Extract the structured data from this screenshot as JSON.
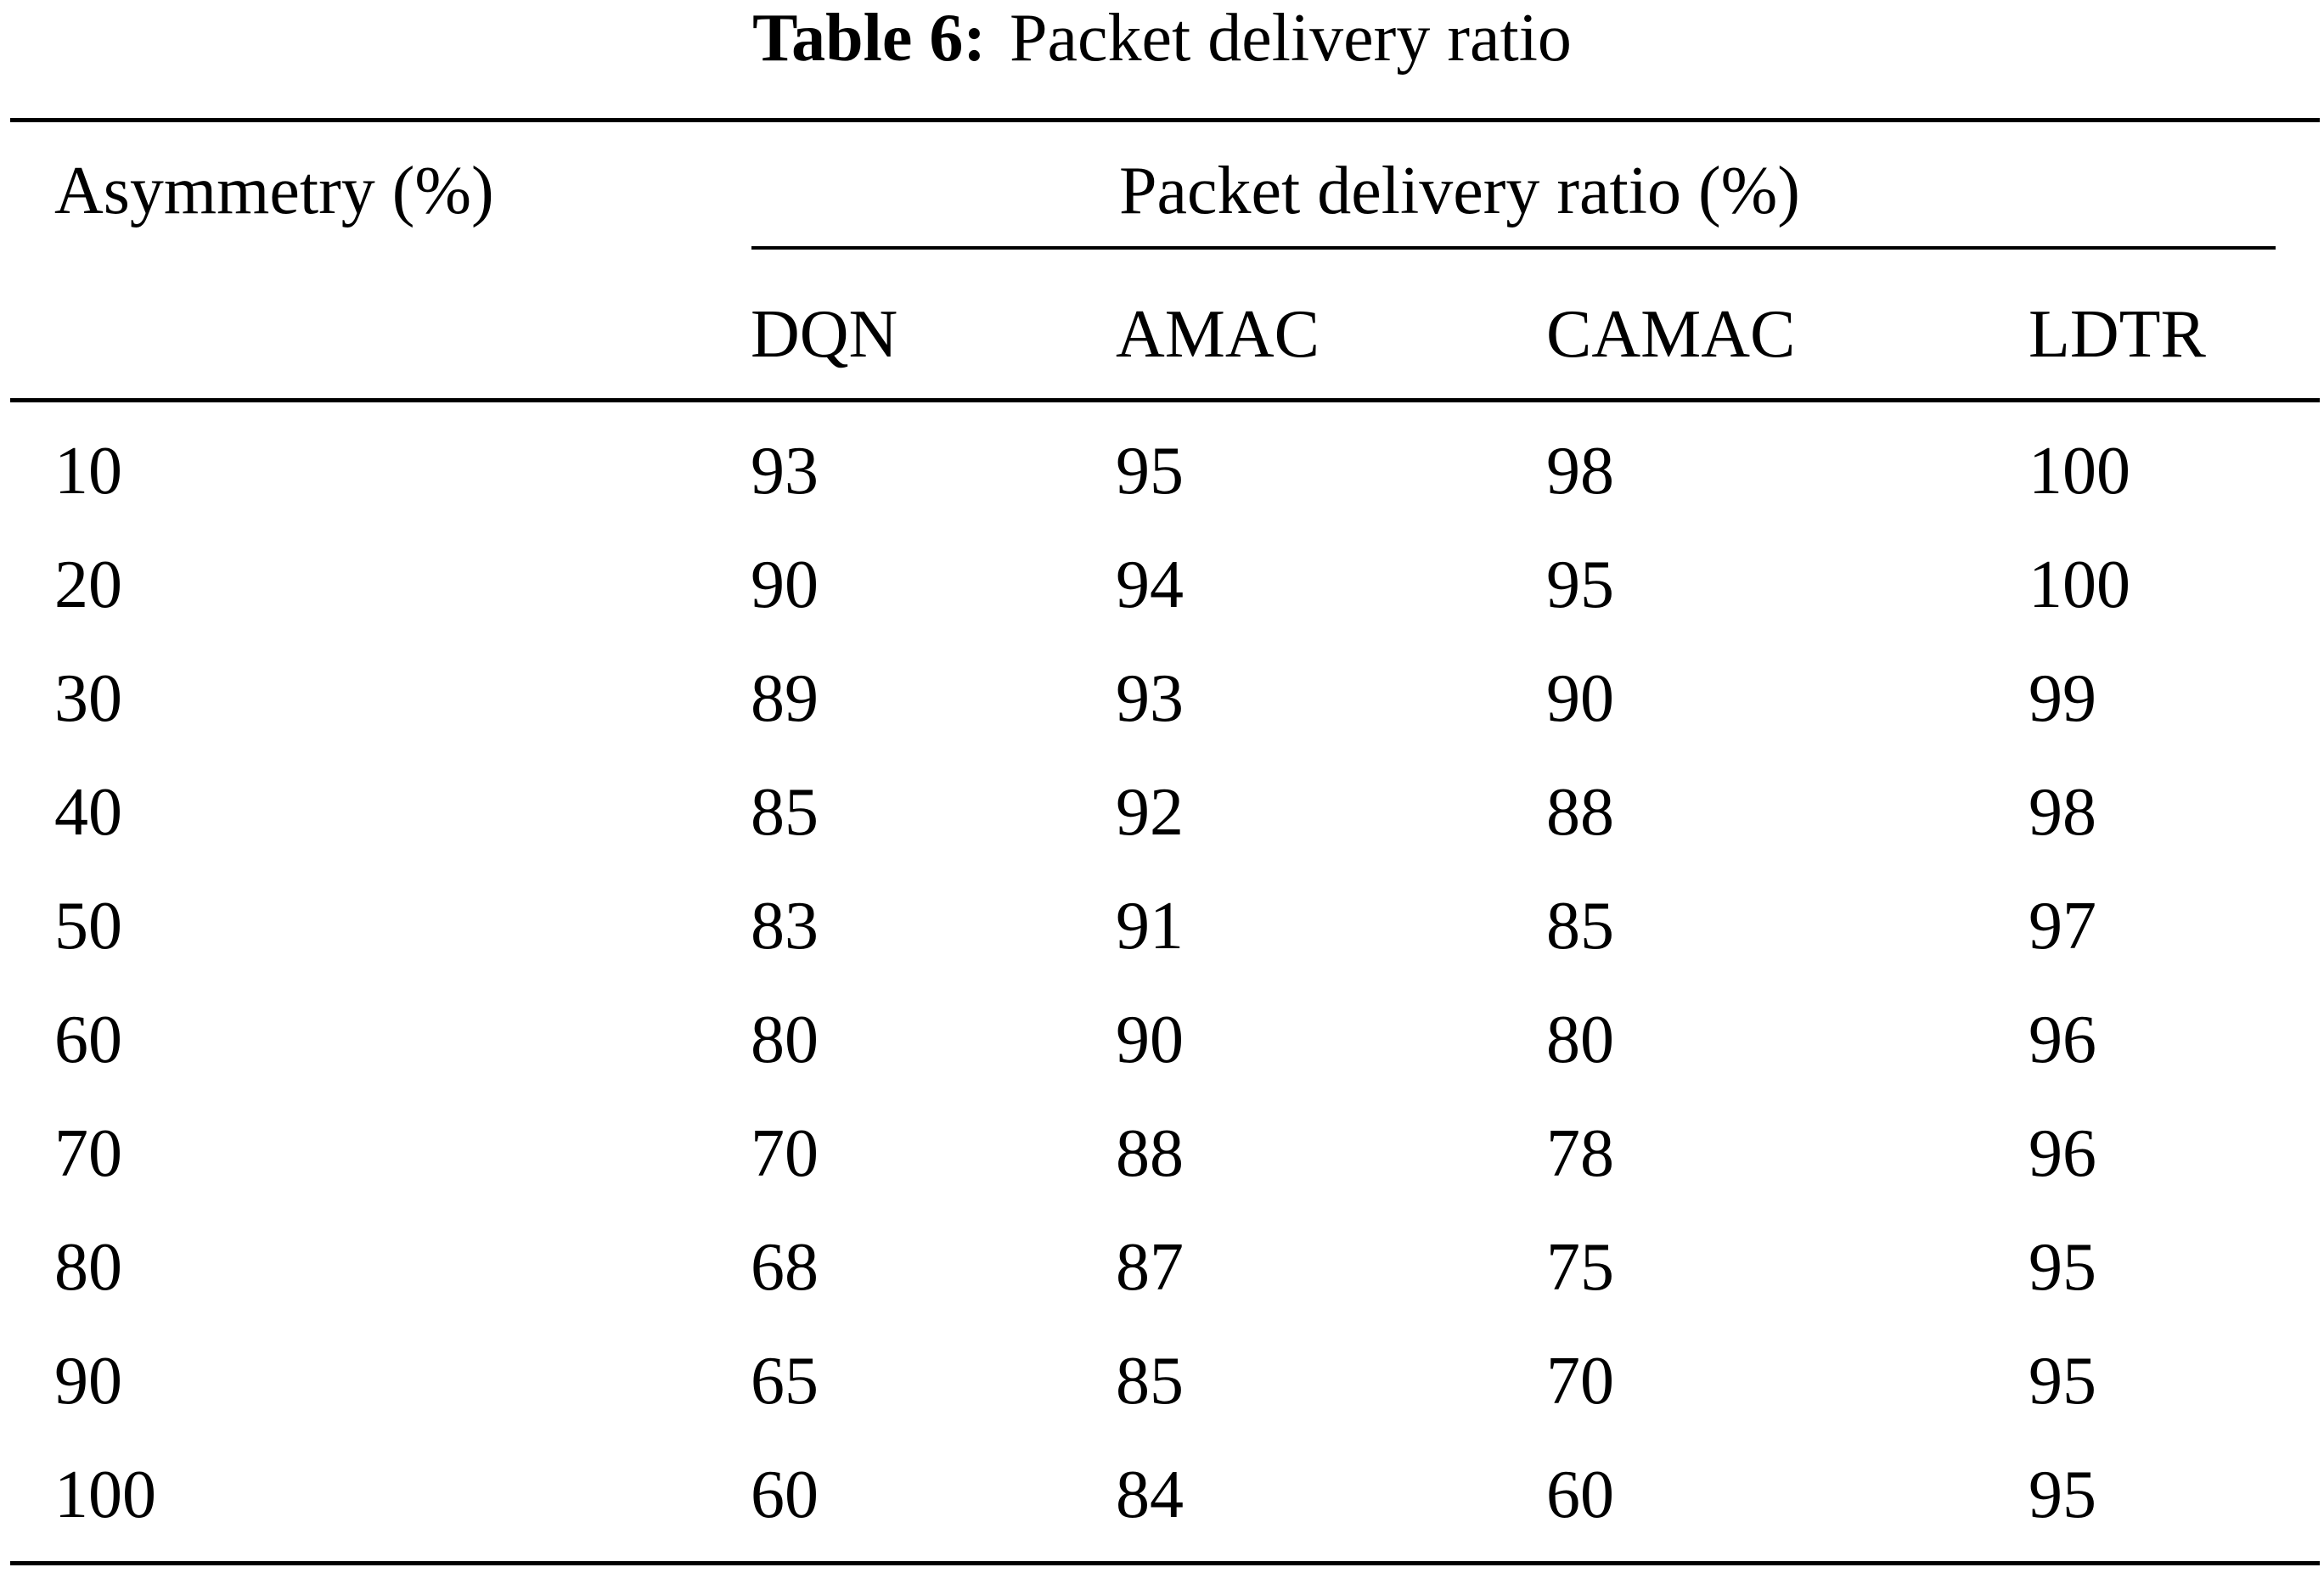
{
  "caption": {
    "label": "Table 6:",
    "title": "Packet delivery ratio"
  },
  "table": {
    "row_header": "Asymmetry (%)",
    "group_header": "Packet delivery ratio (%)",
    "columns": [
      "DQN",
      "AMAC",
      "CAMAC",
      "LDTR"
    ],
    "rows": [
      [
        "10",
        "93",
        "95",
        "98",
        "100"
      ],
      [
        "20",
        "90",
        "94",
        "95",
        "100"
      ],
      [
        "30",
        "89",
        "93",
        "90",
        "99"
      ],
      [
        "40",
        "85",
        "92",
        "88",
        "98"
      ],
      [
        "50",
        "83",
        "91",
        "85",
        "97"
      ],
      [
        "60",
        "80",
        "90",
        "80",
        "96"
      ],
      [
        "70",
        "70",
        "88",
        "78",
        "96"
      ],
      [
        "80",
        "68",
        "87",
        "75",
        "95"
      ],
      [
        "90",
        "65",
        "85",
        "70",
        "95"
      ],
      [
        "100",
        "60",
        "84",
        "60",
        "95"
      ]
    ]
  }
}
